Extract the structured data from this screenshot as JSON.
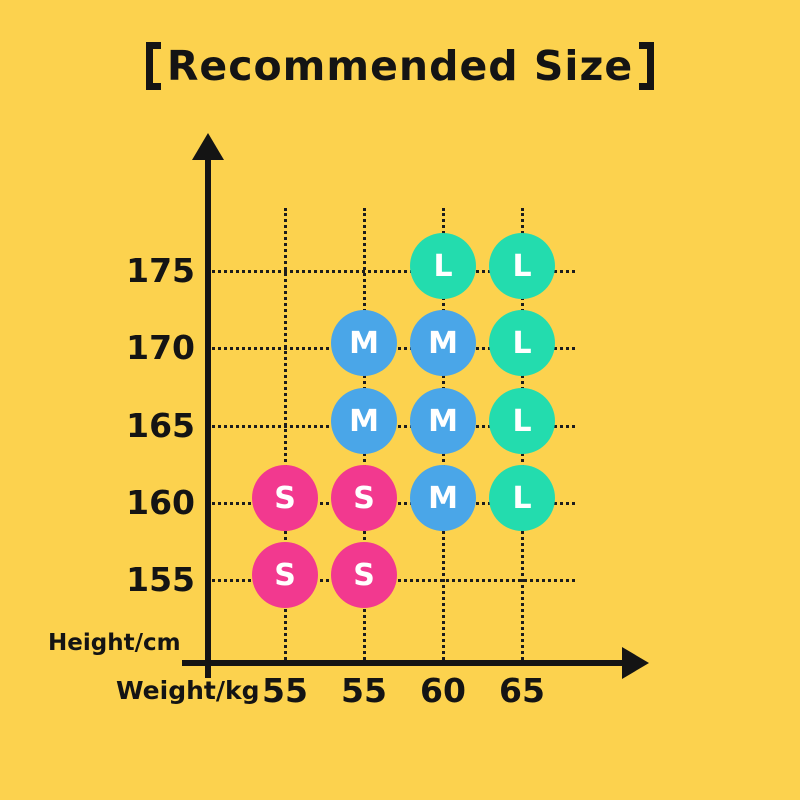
{
  "title": {
    "full": "【Recommended Size】",
    "text": "Recommended Size",
    "bracket_left": "【",
    "bracket_right": "】"
  },
  "colors": {
    "background": "#FCD24E",
    "ink": "#141414",
    "size_s": "#F2398F",
    "size_m": "#4AA6E8",
    "size_l": "#23DCAE",
    "bubble_text": "#FFFFFF"
  },
  "axes": {
    "y_label": "Height/cm",
    "x_label": "Weight/kg"
  },
  "chart_data": {
    "type": "scatter",
    "title": "【Recommended Size】",
    "xlabel": "Weight/kg",
    "ylabel": "Height/cm",
    "x_ticks": [
      "55",
      "55",
      "60",
      "65"
    ],
    "y_ticks": [
      "175",
      "170",
      "165",
      "160",
      "155"
    ],
    "grid": "dotted",
    "legend": [
      {
        "label": "S",
        "color": "#F2398F"
      },
      {
        "label": "M",
        "color": "#4AA6E8"
      },
      {
        "label": "L",
        "color": "#23DCAE"
      }
    ],
    "points": [
      {
        "row": 0,
        "col": 2,
        "height": "175",
        "weight": "60",
        "size": "L"
      },
      {
        "row": 0,
        "col": 3,
        "height": "175",
        "weight": "65",
        "size": "L"
      },
      {
        "row": 1,
        "col": 1,
        "height": "170",
        "weight": "55",
        "size": "M"
      },
      {
        "row": 1,
        "col": 2,
        "height": "170",
        "weight": "60",
        "size": "M"
      },
      {
        "row": 1,
        "col": 3,
        "height": "170",
        "weight": "65",
        "size": "L"
      },
      {
        "row": 2,
        "col": 1,
        "height": "165",
        "weight": "55",
        "size": "M"
      },
      {
        "row": 2,
        "col": 2,
        "height": "165",
        "weight": "60",
        "size": "M"
      },
      {
        "row": 2,
        "col": 3,
        "height": "165",
        "weight": "65",
        "size": "L"
      },
      {
        "row": 3,
        "col": 0,
        "height": "160",
        "weight": "55",
        "size": "S"
      },
      {
        "row": 3,
        "col": 1,
        "height": "160",
        "weight": "55",
        "size": "S"
      },
      {
        "row": 3,
        "col": 2,
        "height": "160",
        "weight": "60",
        "size": "M"
      },
      {
        "row": 3,
        "col": 3,
        "height": "160",
        "weight": "65",
        "size": "L"
      },
      {
        "row": 4,
        "col": 0,
        "height": "155",
        "weight": "55",
        "size": "S"
      },
      {
        "row": 4,
        "col": 1,
        "height": "155",
        "weight": "55",
        "size": "S"
      }
    ]
  }
}
